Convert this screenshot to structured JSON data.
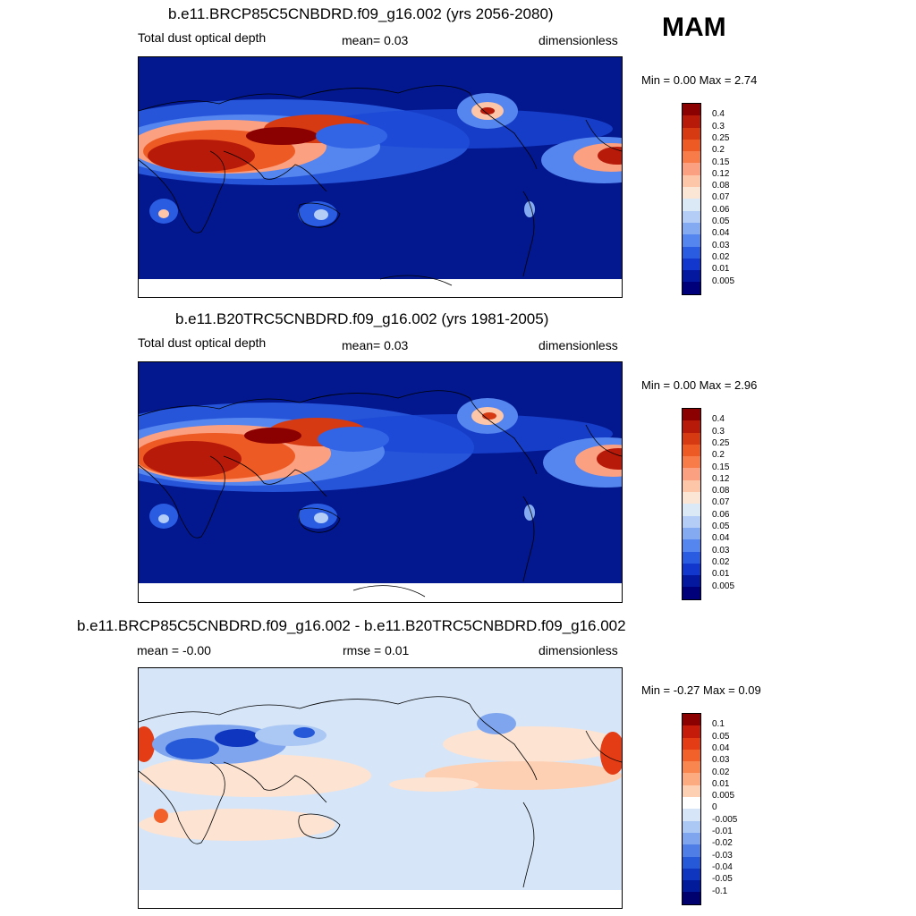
{
  "season": "MAM",
  "panels": [
    {
      "title": "b.e11.BRCP85C5CNBDRD.f09_g16.002 (yrs 2056-2080)",
      "left_text": "Total dust optical depth",
      "mid_text": "mean=   0.03",
      "right_text": "dimensionless",
      "minmax": "Min =    0.00 Max =    2.74",
      "levels": [
        "0.4",
        "0.3",
        "0.25",
        "0.2",
        "0.15",
        "0.12",
        "0.08",
        "0.07",
        "0.06",
        "0.05",
        "0.04",
        "0.03",
        "0.02",
        "0.01",
        "0.005"
      ]
    },
    {
      "title": "b.e11.B20TRC5CNBDRD.f09_g16.002 (yrs 1981-2005)",
      "left_text": "Total dust optical depth",
      "mid_text": "mean=   0.03",
      "right_text": "dimensionless",
      "minmax": "Min =    0.00 Max =    2.96",
      "levels": [
        "0.4",
        "0.3",
        "0.25",
        "0.2",
        "0.15",
        "0.12",
        "0.08",
        "0.07",
        "0.06",
        "0.05",
        "0.04",
        "0.03",
        "0.02",
        "0.01",
        "0.005"
      ]
    },
    {
      "title": "b.e11.BRCP85C5CNBDRD.f09_g16.002 - b.e11.B20TRC5CNBDRD.f09_g16.002",
      "left_text": "mean =  -0.00",
      "mid_text": "rmse =   0.01",
      "right_text": "dimensionless",
      "minmax": "Min =  -0.27 Max =    0.09",
      "levels": [
        "0.1",
        "0.05",
        "0.04",
        "0.03",
        "0.02",
        "0.01",
        "0.005",
        "0",
        "-0.005",
        "-0.01",
        "-0.02",
        "-0.03",
        "-0.04",
        "-0.05",
        "-0.1"
      ]
    }
  ],
  "colors": {
    "abs_scale": [
      "#8b0000",
      "#b81a0a",
      "#d63a12",
      "#ee5a23",
      "#f77c4a",
      "#fba080",
      "#fdc6a8",
      "#fbe6d6",
      "#dbe9f7",
      "#b3cdf6",
      "#84aaf2",
      "#5585ee",
      "#2a5ce2",
      "#1237cc",
      "#03189e",
      "#00007a"
    ],
    "diff_scale": [
      "#8b0000",
      "#c41b0a",
      "#e43c14",
      "#f3612b",
      "#f9864f",
      "#fcaa80",
      "#fdd0b4",
      "#ffffff",
      "#d6e6f8",
      "#abc7f3",
      "#7fa5ee",
      "#4f7fe6",
      "#2659d8",
      "#0e36be",
      "#021b9a",
      "#00006e"
    ],
    "ocean_abs": "#03188f",
    "ocean_diff": "#d6e6f8"
  }
}
